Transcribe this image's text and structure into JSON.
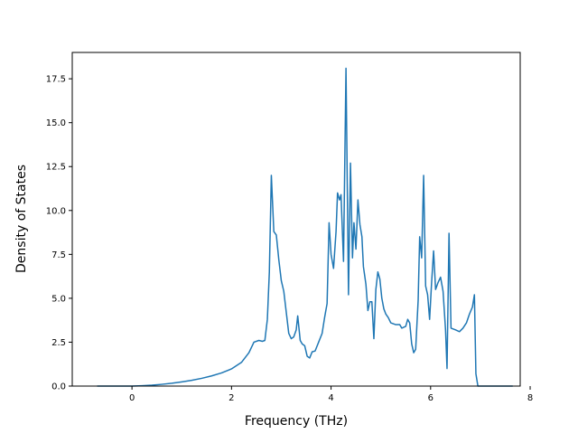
{
  "chart_data": {
    "type": "line",
    "title": "",
    "xlabel": "Frequency (THz)",
    "ylabel": "Density of States",
    "xlim": [
      -1.2,
      7.8
    ],
    "ylim": [
      0,
      19.0
    ],
    "grid": false,
    "legend": "none",
    "x_ticks": [
      0,
      2,
      4,
      6,
      8
    ],
    "y_ticks": [
      0.0,
      2.5,
      5.0,
      7.5,
      10.0,
      12.5,
      15.0,
      17.5
    ],
    "x_tick_labels": [
      "0",
      "2",
      "4",
      "6",
      "8"
    ],
    "y_tick_labels": [
      "0.0",
      "2.5",
      "5.0",
      "7.5",
      "10.0",
      "12.5",
      "15.0",
      "17.5"
    ],
    "series": [
      {
        "color": "#1f77b4",
        "points": [
          [
            -0.7,
            0.0
          ],
          [
            0.0,
            0.0
          ],
          [
            0.2,
            0.02
          ],
          [
            0.4,
            0.05
          ],
          [
            0.6,
            0.1
          ],
          [
            0.8,
            0.16
          ],
          [
            1.0,
            0.24
          ],
          [
            1.2,
            0.33
          ],
          [
            1.4,
            0.44
          ],
          [
            1.6,
            0.58
          ],
          [
            1.8,
            0.75
          ],
          [
            2.0,
            0.98
          ],
          [
            2.2,
            1.35
          ],
          [
            2.35,
            1.9
          ],
          [
            2.45,
            2.5
          ],
          [
            2.55,
            2.6
          ],
          [
            2.62,
            2.55
          ],
          [
            2.67,
            2.6
          ],
          [
            2.72,
            3.8
          ],
          [
            2.76,
            6.5
          ],
          [
            2.8,
            12.0
          ],
          [
            2.85,
            8.8
          ],
          [
            2.9,
            8.6
          ],
          [
            2.95,
            7.2
          ],
          [
            3.0,
            6.0
          ],
          [
            3.05,
            5.4
          ],
          [
            3.1,
            4.2
          ],
          [
            3.15,
            3.0
          ],
          [
            3.2,
            2.7
          ],
          [
            3.25,
            2.8
          ],
          [
            3.3,
            3.2
          ],
          [
            3.33,
            4.0
          ],
          [
            3.38,
            2.6
          ],
          [
            3.42,
            2.4
          ],
          [
            3.47,
            2.3
          ],
          [
            3.52,
            1.7
          ],
          [
            3.57,
            1.6
          ],
          [
            3.62,
            1.95
          ],
          [
            3.68,
            2.0
          ],
          [
            3.75,
            2.5
          ],
          [
            3.82,
            3.0
          ],
          [
            3.87,
            3.9
          ],
          [
            3.92,
            4.7
          ],
          [
            3.96,
            9.3
          ],
          [
            4.0,
            7.5
          ],
          [
            4.05,
            6.7
          ],
          [
            4.1,
            8.8
          ],
          [
            4.13,
            11.0
          ],
          [
            4.17,
            10.6
          ],
          [
            4.2,
            10.9
          ],
          [
            4.25,
            7.1
          ],
          [
            4.3,
            18.1
          ],
          [
            4.35,
            5.2
          ],
          [
            4.39,
            12.7
          ],
          [
            4.43,
            7.3
          ],
          [
            4.46,
            9.3
          ],
          [
            4.5,
            7.8
          ],
          [
            4.54,
            10.6
          ],
          [
            4.58,
            9.2
          ],
          [
            4.62,
            8.5
          ],
          [
            4.65,
            6.8
          ],
          [
            4.7,
            5.8
          ],
          [
            4.74,
            4.3
          ],
          [
            4.78,
            4.8
          ],
          [
            4.82,
            4.8
          ],
          [
            4.86,
            2.7
          ],
          [
            4.9,
            5.5
          ],
          [
            4.94,
            6.5
          ],
          [
            4.98,
            6.1
          ],
          [
            5.02,
            5.0
          ],
          [
            5.06,
            4.4
          ],
          [
            5.1,
            4.1
          ],
          [
            5.15,
            3.9
          ],
          [
            5.2,
            3.6
          ],
          [
            5.3,
            3.5
          ],
          [
            5.38,
            3.5
          ],
          [
            5.42,
            3.3
          ],
          [
            5.5,
            3.4
          ],
          [
            5.54,
            3.8
          ],
          [
            5.58,
            3.6
          ],
          [
            5.62,
            2.4
          ],
          [
            5.66,
            1.9
          ],
          [
            5.7,
            2.1
          ],
          [
            5.75,
            4.9
          ],
          [
            5.78,
            8.5
          ],
          [
            5.82,
            7.3
          ],
          [
            5.86,
            12.0
          ],
          [
            5.9,
            5.7
          ],
          [
            5.94,
            5.2
          ],
          [
            5.98,
            3.8
          ],
          [
            6.02,
            5.9
          ],
          [
            6.06,
            7.7
          ],
          [
            6.1,
            5.5
          ],
          [
            6.15,
            5.9
          ],
          [
            6.2,
            6.2
          ],
          [
            6.25,
            5.4
          ],
          [
            6.3,
            3.2
          ],
          [
            6.33,
            1.0
          ],
          [
            6.37,
            8.7
          ],
          [
            6.41,
            3.3
          ],
          [
            6.5,
            3.2
          ],
          [
            6.58,
            3.1
          ],
          [
            6.65,
            3.3
          ],
          [
            6.72,
            3.6
          ],
          [
            6.78,
            4.1
          ],
          [
            6.84,
            4.5
          ],
          [
            6.88,
            5.2
          ],
          [
            6.91,
            0.7
          ],
          [
            6.95,
            0.0
          ],
          [
            7.3,
            0.0
          ],
          [
            7.65,
            0.0
          ]
        ]
      }
    ]
  }
}
